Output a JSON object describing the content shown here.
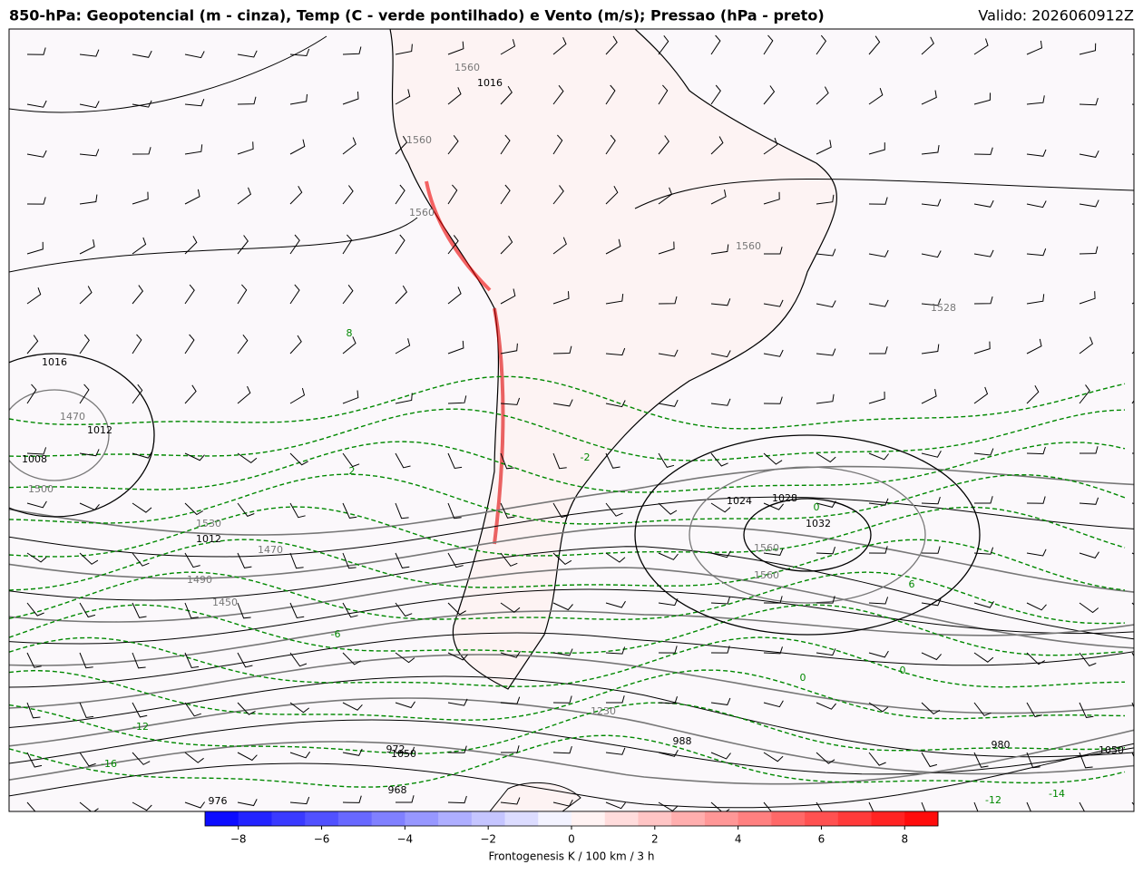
{
  "header": {
    "title": "850-hPa: Geopotencial (m - cinza), Temp (C - verde pontilhado) e Vento (m/s); Pressao (hPa - preto)",
    "valid": "Valido: 2026060912Z"
  },
  "contour_labels": [
    "1560",
    "1016",
    "1560",
    "1560",
    "1528",
    "1560",
    "1016",
    "1470",
    "1012",
    "1008",
    "1500",
    "1530",
    "1012",
    "1470",
    "1490",
    "1450",
    "1560",
    "1024",
    "1028",
    "1032",
    "1560",
    "1230",
    "988",
    "980",
    "1050",
    "972",
    "1050",
    "968",
    "976",
    "8",
    "2",
    "-2",
    "0",
    "-6",
    "6",
    "0",
    "0",
    "-12",
    "-16",
    "-12",
    "-14"
  ],
  "colorbar": {
    "label": "Frontogenesis K / 100 km / 3 h",
    "lim": [
      -8.8,
      8.8
    ],
    "ticks": [
      {
        "value": -8,
        "label": "−8"
      },
      {
        "value": -6,
        "label": "−6"
      },
      {
        "value": -4,
        "label": "−4"
      },
      {
        "value": -2,
        "label": "−2"
      },
      0,
      2,
      4,
      6,
      8
    ]
  }
}
